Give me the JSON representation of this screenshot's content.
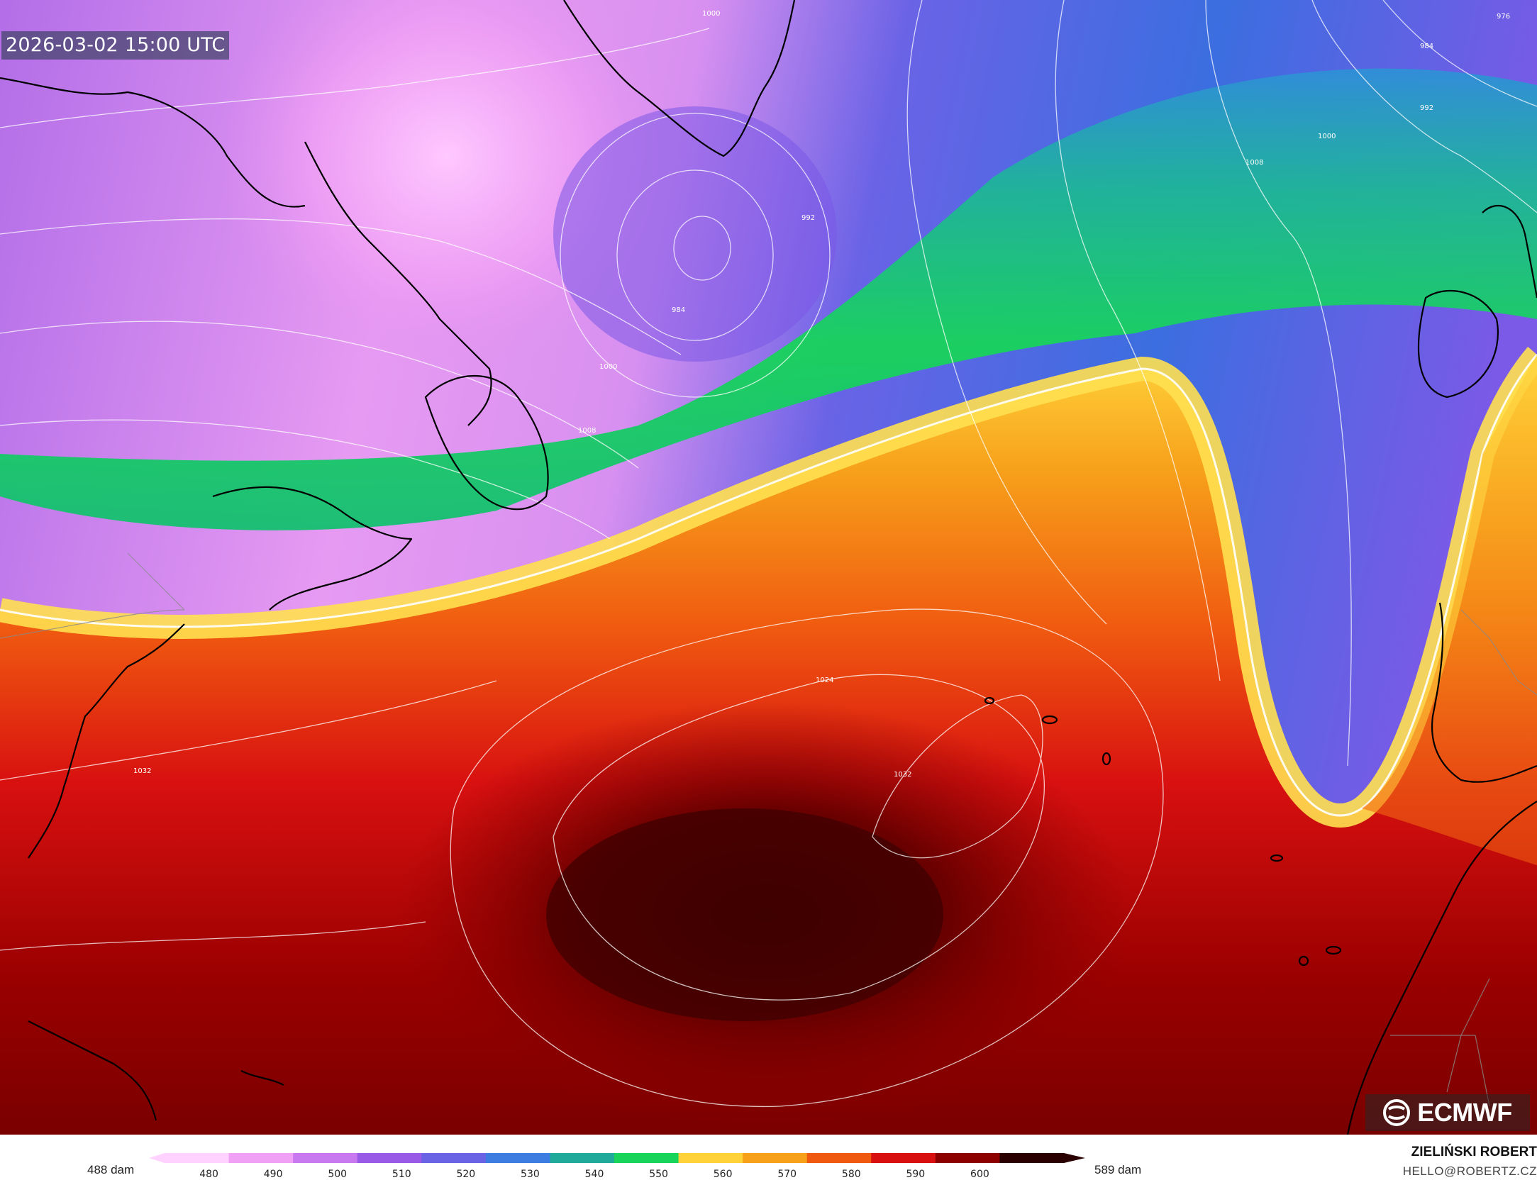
{
  "map": {
    "timestamp": "2026-03-02 15:00 UTC",
    "isobar_labels": [
      "1000",
      "976",
      "984",
      "992",
      "1000",
      "1008",
      "992",
      "984",
      "1000",
      "1008",
      "1024",
      "1032",
      "1032"
    ],
    "colors": {
      "isobar": "#ffffff",
      "coastline": "#000000",
      "border": "#8a8a8a"
    }
  },
  "legend": {
    "min_label": "488 dam",
    "max_label": "589 dam",
    "ticks": [
      "480",
      "490",
      "500",
      "510",
      "520",
      "530",
      "540",
      "550",
      "560",
      "570",
      "580",
      "590",
      "600"
    ],
    "colors": [
      "#ffd2ff",
      "#f0a0f5",
      "#c879f0",
      "#9a5ae8",
      "#6a63e6",
      "#3d7ce0",
      "#1faa9a",
      "#18d45a",
      "#ffd23a",
      "#f7a01a",
      "#f05a10",
      "#d81010",
      "#8c0000",
      "#2a0000"
    ]
  },
  "brand": {
    "logo_text": "ECMWF",
    "author": "ZIELIŃSKI ROBERT",
    "email": "HELLO@ROBERTZ.CZ"
  }
}
